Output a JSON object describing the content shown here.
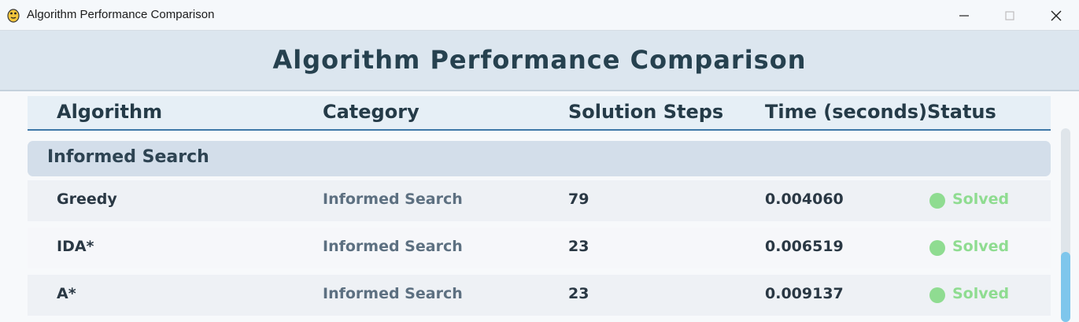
{
  "window": {
    "title": "Algorithm Performance Comparison",
    "app_icon": "python-snake-icon"
  },
  "header": {
    "title": "Algorithm Performance Comparison"
  },
  "table": {
    "columns": [
      "Algorithm",
      "Category",
      "Solution Steps",
      "Time (seconds)",
      "Status"
    ],
    "group": "Informed Search",
    "rows": [
      {
        "algorithm": "Greedy",
        "category": "Informed Search",
        "steps": "79",
        "time": "0.004060",
        "status": "Solved"
      },
      {
        "algorithm": "IDA*",
        "category": "Informed Search",
        "steps": "23",
        "time": "0.006519",
        "status": "Solved"
      },
      {
        "algorithm": "A*",
        "category": "Informed Search",
        "steps": "23",
        "time": "0.009137",
        "status": "Solved"
      }
    ]
  },
  "colors": {
    "accent": "#3f78a8",
    "solved": "#8fdc91",
    "scrollbar": "#7ec6ec"
  }
}
